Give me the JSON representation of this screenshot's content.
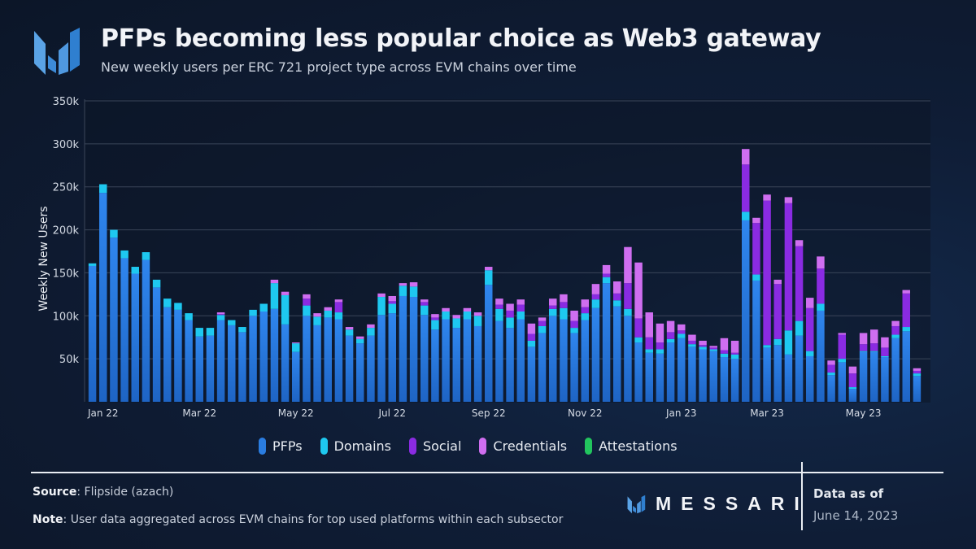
{
  "header": {
    "title": "PFPs becoming less popular choice as Web3 gateway",
    "subtitle": "New weekly users per ERC 721 project type across EVM chains over time"
  },
  "footer": {
    "source_label": "Source",
    "source_text": ": Flipside (azach)",
    "note_label": "Note",
    "note_text": ": User data aggregated across EVM chains for top used platforms within each subsector",
    "brand": "MESSARI",
    "data_as_of_label": "Data as of",
    "data_as_of_date": "June 14, 2023"
  },
  "legend": [
    {
      "name": "PFPs",
      "color": "#2a7de1"
    },
    {
      "name": "Domains",
      "color": "#1ec8f0"
    },
    {
      "name": "Social",
      "color": "#8a2be2"
    },
    {
      "name": "Credentials",
      "color": "#cf6ef0"
    },
    {
      "name": "Attestations",
      "color": "#22c55e"
    }
  ],
  "chart_data": {
    "type": "bar",
    "stacked": true,
    "title": "PFPs becoming less popular choice as Web3 gateway",
    "xlabel": "",
    "ylabel": "Weekly New Users",
    "ylim": [
      0,
      350000
    ],
    "yticks": [
      50000,
      100000,
      150000,
      200000,
      250000,
      300000,
      350000
    ],
    "ytick_labels": [
      "50k",
      "100k",
      "150k",
      "200k",
      "250k",
      "300k",
      "350k"
    ],
    "grid": true,
    "legend_position": "bottom",
    "xtick_labels": [
      {
        "label": "Jan 22",
        "index": 1
      },
      {
        "label": "Mar 22",
        "index": 10
      },
      {
        "label": "May 22",
        "index": 19
      },
      {
        "label": "Jul 22",
        "index": 28
      },
      {
        "label": "Sep 22",
        "index": 37
      },
      {
        "label": "Nov 22",
        "index": 46
      },
      {
        "label": "Jan 23",
        "index": 55
      },
      {
        "label": "Mar 23",
        "index": 63
      },
      {
        "label": "May 23",
        "index": 72
      }
    ],
    "series": [
      {
        "name": "PFPs",
        "values": [
          158,
          243,
          191,
          167,
          149,
          165,
          133,
          110,
          107,
          95,
          76,
          77,
          95,
          89,
          81,
          100,
          105,
          108,
          90,
          58,
          100,
          89,
          98,
          96,
          77,
          68,
          77,
          101,
          103,
          123,
          122,
          101,
          84,
          96,
          86,
          96,
          88,
          136,
          94,
          86,
          96,
          64,
          80,
          100,
          96,
          80,
          95,
          109,
          138,
          111,
          100,
          69,
          57,
          56,
          69,
          74,
          64,
          61,
          59,
          52,
          50,
          211,
          141,
          63,
          66,
          55,
          77,
          53,
          106,
          31,
          46,
          15,
          58,
          58,
          52,
          74,
          82,
          30
        ]
      },
      {
        "name": "Domains",
        "values": [
          3,
          10,
          9,
          9,
          8,
          9,
          9,
          10,
          8,
          8,
          10,
          9,
          6,
          6,
          6,
          7,
          9,
          30,
          34,
          10,
          12,
          10,
          8,
          8,
          7,
          5,
          9,
          21,
          11,
          12,
          12,
          11,
          11,
          9,
          11,
          9,
          12,
          17,
          14,
          12,
          9,
          7,
          8,
          8,
          13,
          6,
          8,
          10,
          7,
          7,
          8,
          6,
          4,
          5,
          4,
          5,
          3,
          3,
          2,
          4,
          5,
          10,
          7,
          3,
          7,
          28,
          17,
          6,
          8,
          3,
          4,
          2,
          1,
          1,
          1,
          4,
          5,
          3
        ]
      },
      {
        "name": "Social",
        "values": [
          0,
          0,
          0,
          0,
          0,
          0,
          0,
          0,
          0,
          0,
          0,
          0,
          1,
          0,
          0,
          0,
          0,
          0,
          0,
          0,
          8,
          0,
          0,
          12,
          0,
          0,
          0,
          0,
          3,
          0,
          0,
          4,
          3,
          0,
          0,
          0,
          0,
          0,
          5,
          8,
          8,
          8,
          6,
          4,
          7,
          8,
          7,
          6,
          4,
          8,
          30,
          22,
          14,
          8,
          8,
          4,
          4,
          2,
          2,
          4,
          2,
          55,
          60,
          168,
          64,
          148,
          87,
          50,
          41,
          9,
          28,
          16,
          8,
          9,
          10,
          10,
          39,
          3
        ]
      },
      {
        "name": "Credentials",
        "values": [
          0,
          0,
          0,
          0,
          0,
          0,
          0,
          0,
          0,
          0,
          0,
          0,
          2,
          0,
          0,
          0,
          0,
          4,
          4,
          1,
          5,
          4,
          4,
          3,
          3,
          3,
          4,
          4,
          6,
          3,
          5,
          3,
          4,
          4,
          4,
          4,
          4,
          4,
          7,
          8,
          6,
          12,
          4,
          8,
          9,
          12,
          9,
          12,
          10,
          14,
          42,
          65,
          29,
          22,
          13,
          7,
          7,
          5,
          2,
          14,
          14,
          18,
          6,
          7,
          5,
          7,
          7,
          12,
          14,
          5,
          2,
          8,
          13,
          16,
          12,
          6,
          4,
          3
        ]
      },
      {
        "name": "Attestations",
        "values": [
          0,
          0,
          0,
          0,
          0,
          0,
          0,
          0,
          0,
          0,
          0,
          0,
          0,
          0,
          0,
          0,
          0,
          0,
          0,
          0,
          0,
          0,
          0,
          0,
          0,
          0,
          0,
          0,
          0,
          0,
          0,
          0,
          0,
          0,
          0,
          0,
          0,
          0,
          0,
          0,
          0,
          0,
          0,
          0,
          0,
          0,
          0,
          0,
          0,
          0,
          0,
          0,
          0,
          0,
          0,
          0,
          0,
          0,
          0,
          0,
          0,
          0,
          0,
          0,
          0,
          0,
          0,
          0,
          0,
          0,
          0,
          0,
          0,
          0,
          0,
          0,
          0,
          0
        ]
      }
    ],
    "value_unit": "thousand users"
  }
}
